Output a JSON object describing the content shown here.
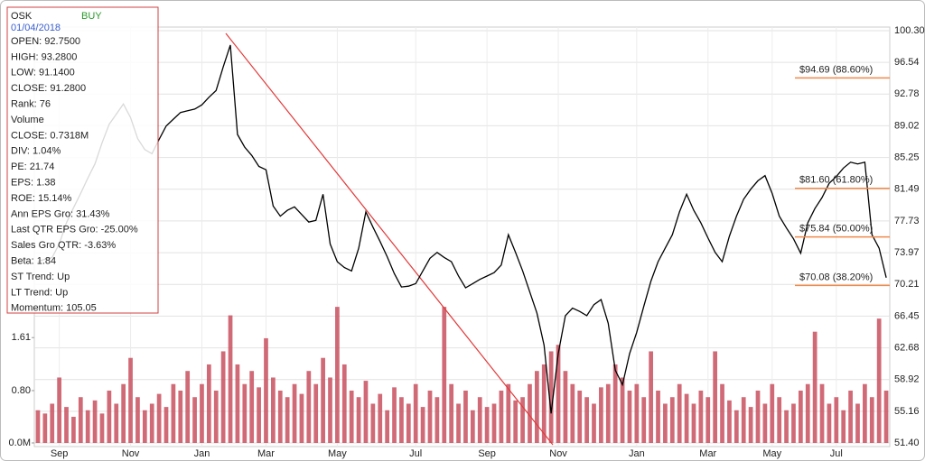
{
  "chart_data": {
    "type": "line",
    "categories": [
      null,
      null,
      null,
      "Sep",
      null,
      null,
      null,
      null,
      null,
      null,
      null,
      null,
      null,
      "Nov",
      null,
      null,
      null,
      null,
      null,
      null,
      null,
      null,
      null,
      "Jan",
      null,
      null,
      null,
      null,
      null,
      null,
      null,
      null,
      "Mar",
      null,
      null,
      null,
      null,
      null,
      null,
      null,
      null,
      null,
      "May",
      null,
      null,
      null,
      null,
      null,
      null,
      null,
      null,
      null,
      null,
      "Jul",
      null,
      null,
      null,
      null,
      null,
      null,
      null,
      null,
      null,
      "Sep",
      null,
      null,
      null,
      null,
      null,
      null,
      null,
      null,
      null,
      "Nov",
      null,
      null,
      null,
      null,
      null,
      null,
      null,
      null,
      null,
      null,
      "Jan",
      null,
      null,
      null,
      null,
      null,
      null,
      null,
      null,
      null,
      "Mar",
      null,
      null,
      null,
      null,
      null,
      null,
      null,
      null,
      "May",
      null,
      null,
      null,
      null,
      null,
      null,
      null,
      null,
      "Jul",
      null,
      null,
      null,
      null,
      null,
      null,
      null
    ],
    "series": [
      {
        "type": "bar",
        "color": "#c9505f",
        "values": [
          0.5,
          0.45,
          0.6,
          1.0,
          0.55,
          0.4,
          0.7,
          0.5,
          0.65,
          0.45,
          0.8,
          0.6,
          0.9,
          1.3,
          0.7,
          0.5,
          0.6,
          0.75,
          0.55,
          0.9,
          0.8,
          1.1,
          0.7,
          0.9,
          1.2,
          0.8,
          1.4,
          1.95,
          1.2,
          0.9,
          1.1,
          0.85,
          1.6,
          1.0,
          0.8,
          0.7,
          0.9,
          0.75,
          1.1,
          0.9,
          1.3,
          1.0,
          2.08,
          1.2,
          0.8,
          0.7,
          0.95,
          0.6,
          0.75,
          0.5,
          0.85,
          0.7,
          0.6,
          0.9,
          0.55,
          0.8,
          0.7,
          2.08,
          0.9,
          0.6,
          0.8,
          0.5,
          0.7,
          0.55,
          0.6,
          0.8,
          0.9,
          0.65,
          0.7,
          0.9,
          1.1,
          1.2,
          1.4,
          1.5,
          1.1,
          0.9,
          0.8,
          0.7,
          0.6,
          0.85,
          0.9,
          1.2,
          1.0,
          0.8,
          0.9,
          0.7,
          1.4,
          0.8,
          0.6,
          0.7,
          0.9,
          0.75,
          0.6,
          0.8,
          0.7,
          1.4,
          0.9,
          0.65,
          0.5,
          0.7,
          0.55,
          0.8,
          0.6,
          0.9,
          0.7,
          0.5,
          0.6,
          0.8,
          0.9,
          1.7,
          0.9,
          0.6,
          0.7,
          0.5,
          0.8,
          0.6,
          0.9,
          0.7,
          1.9,
          0.8
        ]
      },
      {
        "color": "#000000",
        "axis": "y2",
        "values": [
          72.9,
          73.2,
          73.4,
          75,
          77.5,
          79.3,
          81,
          82.8,
          84.5,
          87,
          89.2,
          90.4,
          91.6,
          90,
          87.5,
          86.2,
          85.7,
          87.4,
          89,
          89.8,
          90.6,
          90.8,
          91,
          91.5,
          92.4,
          93.2,
          96,
          98.6,
          88,
          86.5,
          85.5,
          84.2,
          83.8,
          79.5,
          78.3,
          79,
          79.4,
          78.5,
          77.6,
          77.8,
          80.9,
          75,
          72.9,
          72.2,
          71.8,
          74.5,
          78.8,
          77,
          75.3,
          73.5,
          71.5,
          69.9,
          70,
          70.3,
          71.8,
          73.3,
          74,
          73.4,
          72.9,
          71.2,
          69.8,
          70.3,
          70.8,
          71.2,
          71.6,
          72.5,
          76.1,
          74,
          71.8,
          69.3,
          66.8,
          63,
          54.9,
          62,
          66.5,
          67.4,
          67,
          66.5,
          67.8,
          68.4,
          65.6,
          60,
          58.3,
          62,
          64.5,
          67.6,
          70.6,
          72.9,
          74.5,
          76.1,
          78.8,
          80.9,
          79,
          77.5,
          75.7,
          74,
          72.9,
          75.9,
          78.3,
          80.3,
          81.5,
          82.5,
          83.1,
          81,
          78.3,
          76.9,
          75.6,
          73.9,
          77.5,
          79.2,
          80.5,
          82.2,
          83,
          84,
          84.7,
          84.5,
          84.7,
          76.1,
          74.5,
          71
        ]
      }
    ],
    "ylim": [
      0,
      6.3
    ],
    "yticks": [
      {
        "value": 0,
        "label": "0.0M"
      },
      {
        "value": 0.8,
        "label": "0.80"
      },
      1.61
    ],
    "y2lim": [
      51.4,
      100.3
    ],
    "y2ticks": [
      {
        "value": 100.3,
        "label": "100.30"
      },
      96.54,
      92.78,
      89.02,
      85.25,
      81.49,
      77.73,
      73.97,
      70.21,
      66.45,
      62.68,
      58.92,
      55.16,
      {
        "value": 51.4,
        "label": "51.40"
      }
    ],
    "grid": true,
    "levels": [
      {
        "value": 94.69,
        "label": "$94.69 (88.60%)"
      },
      {
        "value": 81.6,
        "label": "$81.60 (61.80%)"
      },
      {
        "value": 75.84,
        "label": "$75.84 (50.00%)"
      },
      {
        "value": 70.08,
        "label": "$70.08 (38.20%)"
      }
    ],
    "level_color": "#f08a4b"
  },
  "info_box": {
    "symbol": "OSK",
    "signal": "BUY",
    "date": "01/04/2018",
    "lines": [
      "OPEN: 92.7500",
      "HIGH: 93.2800",
      "LOW: 91.1400",
      "CLOSE: 91.2800",
      "Rank: 76",
      "Volume",
      "CLOSE: 0.7318M",
      "DIV: 1.04%",
      "PE: 21.74",
      "EPS: 1.38",
      "ROE: 15.14%",
      "Ann EPS Gro: 31.43%",
      "Last QTR EPS Gro: -25.00%",
      "Sales Gro QTR: -3.63%",
      "Beta: 1.84",
      "ST Trend: Up",
      "LT Trend: Up",
      "Momentum: 105.05"
    ]
  }
}
